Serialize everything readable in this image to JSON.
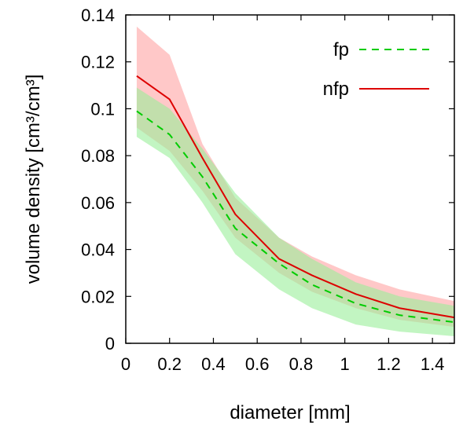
{
  "chart_data": {
    "type": "line",
    "xlabel": "diameter [mm]",
    "ylabel": "volume density [cm³/cm³]",
    "xlim": [
      0,
      1.5
    ],
    "ylim": [
      0,
      0.14
    ],
    "x_ticks": [
      "0",
      "0.2",
      "0.4",
      "0.6",
      "0.8",
      "1",
      "1.2",
      "1.4"
    ],
    "x_tick_values": [
      0,
      0.2,
      0.4,
      0.6,
      0.8,
      1.0,
      1.2,
      1.4
    ],
    "y_ticks": [
      "0",
      "0.02",
      "0.04",
      "0.06",
      "0.08",
      "0.1",
      "0.12",
      "0.14"
    ],
    "y_tick_values": [
      0,
      0.02,
      0.04,
      0.06,
      0.08,
      0.1,
      0.12,
      0.14
    ],
    "grid": false,
    "legend_position": "top-right",
    "series": [
      {
        "name": "fp",
        "color": "#00cc00",
        "band_color": "#99ee99",
        "line_style": "dashed",
        "x": [
          0.05,
          0.2,
          0.35,
          0.5,
          0.7,
          0.85,
          1.05,
          1.25,
          1.5
        ],
        "y": [
          0.099,
          0.089,
          0.071,
          0.049,
          0.034,
          0.025,
          0.017,
          0.012,
          0.009
        ],
        "lower": [
          0.088,
          0.079,
          0.06,
          0.038,
          0.023,
          0.015,
          0.008,
          0.005,
          0.003
        ],
        "upper": [
          0.109,
          0.1,
          0.083,
          0.064,
          0.045,
          0.036,
          0.026,
          0.02,
          0.016
        ]
      },
      {
        "name": "nfp",
        "color": "#dd0000",
        "band_color": "#ffaaaa",
        "line_style": "solid",
        "x": [
          0.05,
          0.2,
          0.35,
          0.5,
          0.7,
          0.85,
          1.05,
          1.25,
          1.5
        ],
        "y": [
          0.114,
          0.104,
          0.079,
          0.055,
          0.036,
          0.029,
          0.021,
          0.015,
          0.011
        ],
        "lower": [
          0.092,
          0.082,
          0.065,
          0.045,
          0.03,
          0.022,
          0.015,
          0.01,
          0.007
        ],
        "upper": [
          0.135,
          0.123,
          0.085,
          0.062,
          0.045,
          0.037,
          0.029,
          0.023,
          0.018
        ]
      }
    ]
  }
}
